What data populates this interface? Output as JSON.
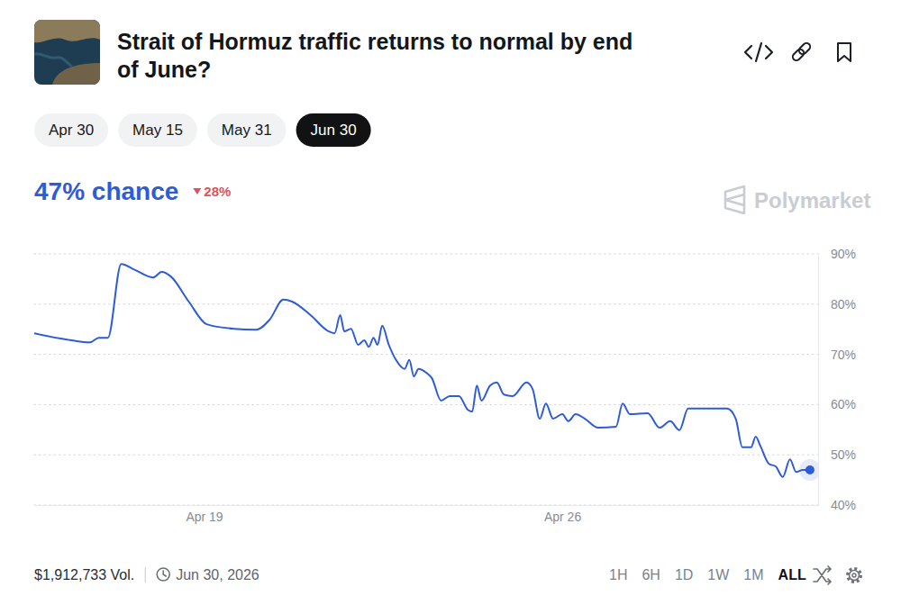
{
  "page": {
    "tabs": [
      {
        "label": "Apr 30",
        "selected": false
      },
      {
        "label": "May 15",
        "selected": false
      },
      {
        "label": "May 31",
        "selected": false
      },
      {
        "label": "Jun 30",
        "selected": true
      }
    ],
    "headline": "47% chance",
    "change": {
      "label": "28%",
      "direction": "down"
    },
    "brand": "Polymarket",
    "volume": "$1,912,733 Vol.",
    "end_date": "Jun 30, 2026",
    "ranges": [
      {
        "label": "1H",
        "selected": false
      },
      {
        "label": "6H",
        "selected": false
      },
      {
        "label": "1D",
        "selected": false
      },
      {
        "label": "1W",
        "selected": false
      },
      {
        "label": "1M",
        "selected": false
      },
      {
        "label": "ALL",
        "selected": true
      }
    ]
  },
  "chart_data": {
    "type": "line",
    "title": "Strait of Hormuz traffic returns to normal by end of June?",
    "x": [
      15.68,
      16.41,
      16.77,
      16.94,
      17.12,
      17.38,
      17.65,
      18.0,
      18.17,
      18.35,
      18.7,
      19.05,
      19.58,
      20.02,
      20.28,
      20.55,
      20.72,
      21.08,
      21.43,
      21.55,
      21.66,
      21.74,
      21.87,
      22.01,
      22.13,
      22.22,
      22.31,
      22.39,
      22.48,
      22.61,
      22.75,
      22.92,
      23.01,
      23.1,
      23.19,
      23.36,
      23.45,
      23.63,
      23.8,
      23.98,
      24.15,
      24.24,
      24.33,
      24.42,
      24.59,
      24.72,
      24.86,
      25.03,
      25.3,
      25.42,
      25.56,
      25.68,
      25.82,
      26.0,
      26.12,
      26.26,
      26.44,
      26.7,
      27.05,
      27.18,
      27.32,
      27.67,
      27.9,
      28.11,
      28.29,
      28.46,
      29.22,
      29.39,
      29.52,
      29.69,
      29.78,
      29.87,
      30.04,
      30.17,
      30.31,
      30.45,
      30.57,
      30.7,
      30.84
    ],
    "values": [
      74.2,
      72.8,
      72.4,
      73.3,
      73.3,
      88.0,
      86.8,
      85.3,
      86.4,
      85.5,
      80.5,
      76.0,
      75.1,
      74.9,
      76.9,
      80.9,
      80.5,
      77.8,
      74.6,
      74.2,
      77.8,
      74.6,
      75.1,
      71.9,
      72.8,
      71.5,
      73.3,
      71.9,
      75.7,
      71.9,
      68.9,
      67.1,
      68.9,
      65.6,
      67.1,
      66.2,
      65.3,
      60.8,
      61.7,
      61.7,
      59.0,
      58.6,
      63.8,
      60.8,
      63.8,
      64.4,
      62.0,
      61.7,
      64.4,
      63.1,
      57.2,
      60.2,
      57.2,
      58.1,
      56.7,
      58.1,
      57.2,
      55.4,
      55.6,
      60.2,
      58.1,
      58.3,
      55.4,
      56.7,
      54.9,
      59.2,
      59.2,
      57.2,
      51.5,
      51.5,
      53.6,
      51.8,
      48.2,
      47.7,
      45.6,
      49.1,
      46.6,
      47.0,
      47.0
    ],
    "color": "#2e5cd6",
    "marker": "end",
    "xlim": [
      15.68,
      31
    ],
    "xticks": [
      {
        "value": 19,
        "label": "Apr 19"
      },
      {
        "value": 26,
        "label": "Apr 26"
      }
    ],
    "ylim": [
      40,
      90
    ],
    "yticks": [
      {
        "value": 40,
        "label": "40%"
      },
      {
        "value": 50,
        "label": "50%"
      },
      {
        "value": 60,
        "label": "60%"
      },
      {
        "value": 70,
        "label": "70%"
      },
      {
        "value": 80,
        "label": "80%"
      },
      {
        "value": 90,
        "label": "90%"
      }
    ],
    "grid": true
  }
}
